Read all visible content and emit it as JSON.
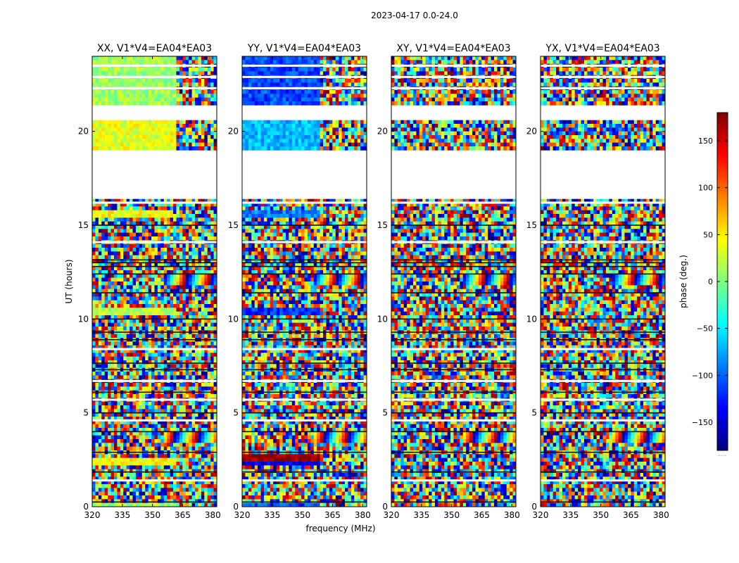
{
  "figure": {
    "suptitle": "2023-04-17 0.0-24.0",
    "xlabel": "frequency (MHz)",
    "ylabel": "UT (hours)"
  },
  "colorbar": {
    "label": "phase (deg.)",
    "range": [
      -180,
      180
    ],
    "ticks": [
      150,
      100,
      50,
      0,
      -50,
      -100,
      -150
    ],
    "tick_labels": [
      "150",
      "100",
      "50",
      "0",
      "−50",
      "−100",
      "−150"
    ],
    "colormap": "jet",
    "stops": [
      "#00007f",
      "#0000ff",
      "#007fff",
      "#00ffff",
      "#7fff7f",
      "#ffff00",
      "#ff7f00",
      "#ff0000",
      "#7f0000"
    ],
    "footnote": "......"
  },
  "chart_data": {
    "type": "heatmap",
    "x_range_mhz": [
      320,
      382
    ],
    "y_range_hours": [
      0,
      24
    ],
    "xticks": [
      320,
      335,
      350,
      365,
      380
    ],
    "yticks": [
      0,
      5,
      10,
      15,
      20
    ],
    "blank_intervals_hours": [
      [
        16.5,
        19.0
      ],
      [
        20.7,
        21.5
      ]
    ],
    "horizontal_gaps_hours": [
      1.4,
      4.6,
      5.7,
      6.7,
      8.4,
      14.1,
      16.2,
      22.3,
      22.9,
      23.5
    ],
    "dark_lines_hours": [
      0.25,
      1.85,
      2.9,
      4.0,
      5.0,
      6.1,
      7.3,
      7.65,
      8.9,
      9.3,
      10.0,
      11.4,
      12.4,
      12.8,
      13.0,
      13.15,
      15.0
    ],
    "fringe_bands_hours": [
      [
        3.4,
        3.9
      ],
      [
        11.8,
        12.5
      ],
      [
        15.0,
        15.3
      ]
    ],
    "panels": [
      {
        "title": "XX, V1*V4=EA04*EA03",
        "coherent_bands": [
          {
            "y": [
              19.0,
              20.7
            ],
            "x": [
              320,
              362
            ],
            "phase_deg": 35
          },
          {
            "y": [
              21.5,
              24.0
            ],
            "x": [
              320,
              362
            ],
            "phase_deg": 10
          },
          {
            "y": [
              15.5,
              15.8
            ],
            "x": [
              320,
              360
            ],
            "phase_deg": 45
          },
          {
            "y": [
              10.2,
              10.7
            ],
            "x": [
              320,
              362
            ],
            "phase_deg": 20
          },
          {
            "y": [
              2.2,
              2.6
            ],
            "x": [
              320,
              362
            ],
            "phase_deg": 45
          },
          {
            "y": [
              0.0,
              0.25
            ],
            "x": [
              320,
              362
            ],
            "phase_deg": 10
          }
        ]
      },
      {
        "title": "YY, V1*V4=EA04*EA03",
        "coherent_bands": [
          {
            "y": [
              19.0,
              20.7
            ],
            "x": [
              320,
              359
            ],
            "phase_deg": -70
          },
          {
            "y": [
              21.5,
              24.0
            ],
            "x": [
              320,
              359
            ],
            "phase_deg": -110
          },
          {
            "y": [
              15.5,
              15.8
            ],
            "x": [
              320,
              359
            ],
            "phase_deg": -90
          },
          {
            "y": [
              10.2,
              10.7
            ],
            "x": [
              320,
              359
            ],
            "phase_deg": -120
          },
          {
            "y": [
              2.5,
              2.7
            ],
            "x": [
              320,
              359
            ],
            "phase_deg": 175
          },
          {
            "y": [
              2.2,
              2.5
            ],
            "x": [
              320,
              359
            ],
            "phase_deg": -150
          },
          {
            "y": [
              0.0,
              0.3
            ],
            "x": [
              320,
              359
            ],
            "phase_deg": -110
          }
        ]
      },
      {
        "title": "XY, V1*V4=EA04*EA03",
        "coherent_bands": []
      },
      {
        "title": "YX, V1*V4=EA04*EA03",
        "coherent_bands": []
      }
    ]
  }
}
